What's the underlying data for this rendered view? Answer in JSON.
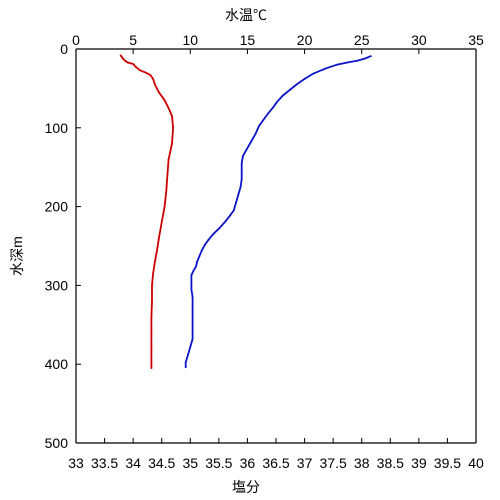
{
  "chart_data": {
    "type": "line",
    "top_axis": {
      "label": "水温℃",
      "color": "#1f2fb4",
      "range": [
        0,
        35
      ],
      "ticks": [
        0,
        5,
        10,
        15,
        20,
        25,
        30,
        35
      ],
      "tick_labels": [
        "0",
        "5",
        "10",
        "15",
        "20",
        "25",
        "30",
        "35"
      ]
    },
    "bottom_axis": {
      "label": "塩分",
      "color": "#cc0000",
      "range": [
        33,
        40
      ],
      "ticks": [
        33,
        33.5,
        34,
        34.5,
        35,
        35.5,
        36,
        36.5,
        37,
        37.5,
        38,
        38.5,
        39,
        39.5,
        40
      ],
      "tick_labels": [
        "33",
        "33.5",
        "34",
        "34.5",
        "35",
        "35.5",
        "36",
        "36.5",
        "37",
        "37.5",
        "38",
        "38.5",
        "39",
        "39.5",
        "40"
      ]
    },
    "y_axis": {
      "label": "水深m",
      "range": [
        0,
        500
      ],
      "inverted": true,
      "ticks": [
        0,
        100,
        200,
        300,
        400,
        500
      ],
      "tick_labels": [
        "0",
        "100",
        "200",
        "300",
        "400",
        "500"
      ]
    },
    "series": [
      {
        "axis": "top",
        "color": "#0a14c8",
        "points": [
          [
            25.8,
            9
          ],
          [
            25.3,
            12
          ],
          [
            24.6,
            15
          ],
          [
            23.8,
            17
          ],
          [
            22.8,
            20
          ],
          [
            21.8,
            25
          ],
          [
            20.8,
            31
          ],
          [
            20.0,
            38
          ],
          [
            19.3,
            45
          ],
          [
            18.7,
            52
          ],
          [
            18.1,
            59
          ],
          [
            17.6,
            67
          ],
          [
            17.2,
            75
          ],
          [
            16.8,
            82
          ],
          [
            16.4,
            90
          ],
          [
            16.0,
            98
          ],
          [
            15.7,
            108
          ],
          [
            15.3,
            118
          ],
          [
            14.9,
            128
          ],
          [
            14.6,
            136
          ],
          [
            14.5,
            145
          ],
          [
            14.5,
            155
          ],
          [
            14.5,
            165
          ],
          [
            14.4,
            175
          ],
          [
            14.2,
            185
          ],
          [
            14.0,
            195
          ],
          [
            13.8,
            205
          ],
          [
            13.4,
            213
          ],
          [
            13.0,
            220
          ],
          [
            12.5,
            228
          ],
          [
            12.0,
            235
          ],
          [
            11.6,
            242
          ],
          [
            11.3,
            248
          ],
          [
            11.0,
            256
          ],
          [
            10.8,
            263
          ],
          [
            10.6,
            270
          ],
          [
            10.5,
            276
          ],
          [
            10.3,
            281
          ],
          [
            10.1,
            287
          ],
          [
            10.1,
            295
          ],
          [
            10.1,
            305
          ],
          [
            10.2,
            315
          ],
          [
            10.2,
            330
          ],
          [
            10.2,
            345
          ],
          [
            10.2,
            358
          ],
          [
            10.2,
            368
          ],
          [
            10.0,
            378
          ],
          [
            9.8,
            388
          ],
          [
            9.6,
            398
          ],
          [
            9.6,
            404
          ]
        ]
      },
      {
        "axis": "bottom",
        "color": "#cc0000",
        "points": [
          [
            33.78,
            8
          ],
          [
            33.82,
            12
          ],
          [
            33.86,
            15
          ],
          [
            33.9,
            17
          ],
          [
            34.0,
            19
          ],
          [
            34.05,
            23
          ],
          [
            34.12,
            27
          ],
          [
            34.22,
            30
          ],
          [
            34.3,
            33
          ],
          [
            34.35,
            38
          ],
          [
            34.38,
            45
          ],
          [
            34.45,
            55
          ],
          [
            34.55,
            65
          ],
          [
            34.62,
            75
          ],
          [
            34.68,
            85
          ],
          [
            34.7,
            100
          ],
          [
            34.68,
            120
          ],
          [
            34.62,
            140
          ],
          [
            34.6,
            160
          ],
          [
            34.58,
            180
          ],
          [
            34.55,
            200
          ],
          [
            34.5,
            220
          ],
          [
            34.45,
            240
          ],
          [
            34.42,
            255
          ],
          [
            34.38,
            270
          ],
          [
            34.35,
            285
          ],
          [
            34.33,
            300
          ],
          [
            34.33,
            320
          ],
          [
            34.32,
            340
          ],
          [
            34.32,
            360
          ],
          [
            34.32,
            380
          ],
          [
            34.32,
            395
          ],
          [
            34.32,
            405
          ]
        ]
      }
    ]
  }
}
